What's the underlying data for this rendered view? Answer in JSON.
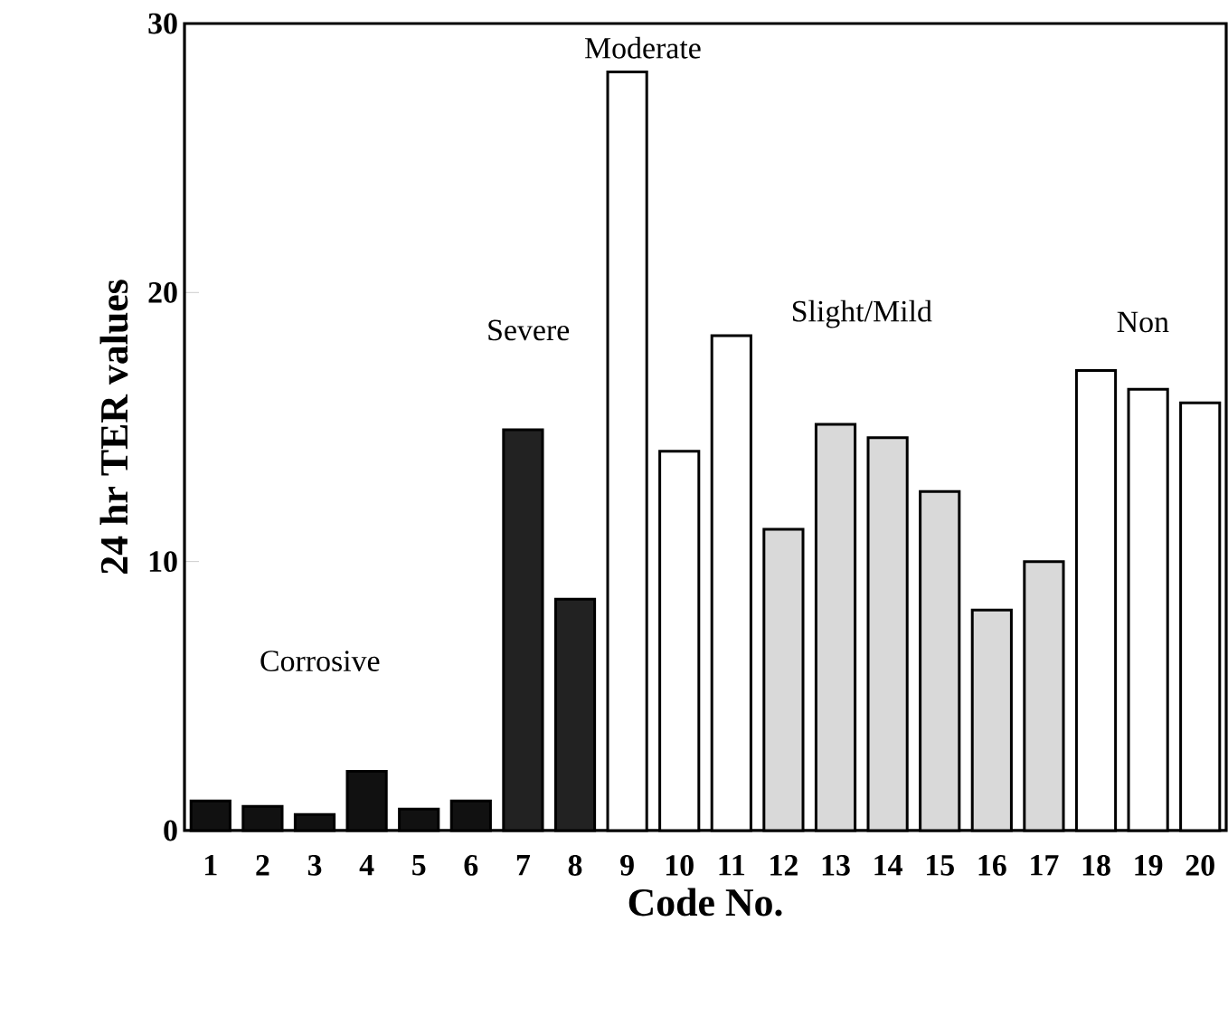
{
  "chart_data": {
    "type": "bar",
    "xlabel": "Code No.",
    "ylabel": "24 hr TER values",
    "categories": [
      "1",
      "2",
      "3",
      "4",
      "5",
      "6",
      "7",
      "8",
      "9",
      "10",
      "11",
      "12",
      "13",
      "14",
      "15",
      "16",
      "17",
      "18",
      "19",
      "20"
    ],
    "values": [
      1.1,
      0.9,
      0.6,
      2.2,
      0.8,
      1.1,
      14.9,
      8.6,
      28.2,
      14.1,
      18.4,
      11.2,
      15.1,
      14.6,
      12.6,
      8.2,
      10.0,
      17.1,
      16.4,
      15.9
    ],
    "colors": [
      "#111111",
      "#111111",
      "#111111",
      "#111111",
      "#111111",
      "#111111",
      "#222222",
      "#222222",
      "#ffffff",
      "#ffffff",
      "#ffffff",
      "#d9d9d9",
      "#d9d9d9",
      "#d9d9d9",
      "#d9d9d9",
      "#d9d9d9",
      "#d9d9d9",
      "#ffffff",
      "#ffffff",
      "#ffffff"
    ],
    "ylim": [
      0,
      30
    ],
    "yticks": [
      0,
      10,
      20,
      30
    ],
    "annotations": [
      "Corrosive",
      "Severe",
      "Moderate",
      "Slight/Mild",
      "Non"
    ]
  }
}
